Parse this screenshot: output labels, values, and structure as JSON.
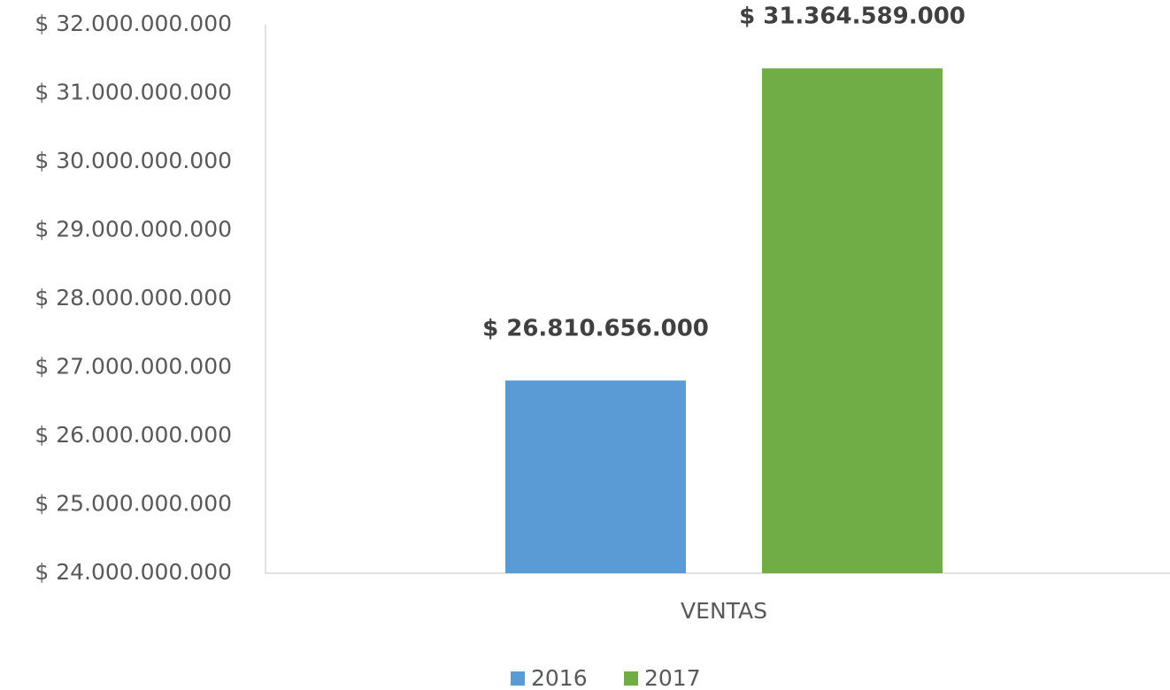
{
  "chart_data": {
    "type": "bar",
    "categories": [
      "VENTAS"
    ],
    "series": [
      {
        "name": "2016",
        "color": "#5b9bd5",
        "values": [
          26810656000
        ],
        "value_labels": [
          "$ 26.810.656.000"
        ]
      },
      {
        "name": "2017",
        "color": "#70ad47",
        "values": [
          31364589000
        ],
        "value_labels": [
          "$ 31.364.589.000"
        ]
      }
    ],
    "ylim": [
      24000000000,
      32000000000
    ],
    "yticks": [
      {
        "value": 24000000000,
        "label": "$ 24.000.000.000"
      },
      {
        "value": 25000000000,
        "label": "$ 25.000.000.000"
      },
      {
        "value": 26000000000,
        "label": "$ 26.000.000.000"
      },
      {
        "value": 27000000000,
        "label": "$ 27.000.000.000"
      },
      {
        "value": 28000000000,
        "label": "$ 28.000.000.000"
      },
      {
        "value": 29000000000,
        "label": "$ 29.000.000.000"
      },
      {
        "value": 30000000000,
        "label": "$ 30.000.000.000"
      },
      {
        "value": 31000000000,
        "label": "$ 31.000.000.000"
      },
      {
        "value": 32000000000,
        "label": "$ 32.000.000.000"
      }
    ],
    "grid": false
  }
}
